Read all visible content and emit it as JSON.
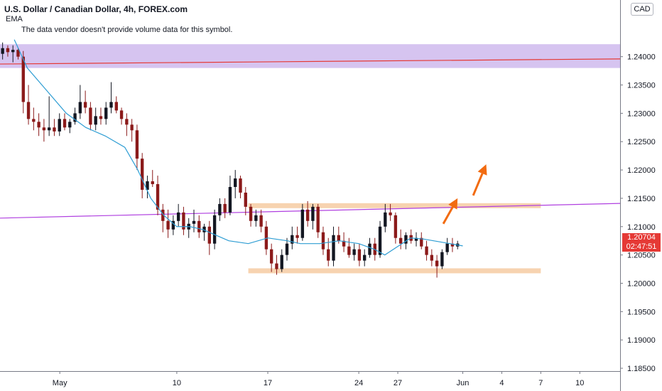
{
  "header": {
    "title": "U.S. Dollar / Canadian Dollar, 4h, FOREX.com",
    "indicator": "EMA",
    "warning": "The data vendor doesn't provide volume data for this symbol.",
    "currency": "CAD"
  },
  "price_tag": {
    "price": "1.20704",
    "countdown": "02:47:51"
  },
  "colors": {
    "up": "#131722",
    "down": "#8b1a1a",
    "ema": "#2e9dd3",
    "upper_zone": "#d6c4f0",
    "support": "#f7d3b0",
    "trendline": "#b040e0",
    "red_line": "#e53935",
    "arrow": "#f26b10",
    "price_tag": "#e53935"
  },
  "chart_data": {
    "type": "candlestick",
    "ylim": [
      1.1845,
      1.25
    ],
    "y_ticks": [
      "1.24000",
      "1.23500",
      "1.23000",
      "1.22500",
      "1.22000",
      "1.21500",
      "1.21000",
      "1.20500",
      "1.20000",
      "1.19500",
      "1.19000",
      "1.18500"
    ],
    "y_tick_values": [
      1.24,
      1.235,
      1.23,
      1.225,
      1.22,
      1.215,
      1.21,
      1.205,
      1.2,
      1.195,
      1.19,
      1.185
    ],
    "x_ticks": [
      "May",
      "10",
      "17",
      "24",
      "27",
      "Jun",
      "4",
      "7",
      "10"
    ],
    "x_tick_days": [
      1,
      10,
      17,
      24,
      27,
      32,
      35,
      38,
      41
    ],
    "x_start_day": -3.6,
    "x_end_day": 44.1,
    "candles": [
      [
        1.2405,
        1.2425,
        1.2395,
        1.2415
      ],
      [
        1.2415,
        1.242,
        1.24,
        1.2408
      ],
      [
        1.2408,
        1.242,
        1.239,
        1.2412
      ],
      [
        1.2412,
        1.2415,
        1.2395,
        1.24
      ],
      [
        1.24,
        1.241,
        1.23,
        1.232
      ],
      [
        1.232,
        1.235,
        1.228,
        1.229
      ],
      [
        1.229,
        1.231,
        1.227,
        1.2285
      ],
      [
        1.2285,
        1.23,
        1.226,
        1.2275
      ],
      [
        1.2275,
        1.229,
        1.225,
        1.227
      ],
      [
        1.227,
        1.233,
        1.226,
        1.2275
      ],
      [
        1.2275,
        1.229,
        1.226,
        1.2268
      ],
      [
        1.2268,
        1.23,
        1.226,
        1.229
      ],
      [
        1.229,
        1.23,
        1.227,
        1.2275
      ],
      [
        1.2275,
        1.229,
        1.2265,
        1.2285
      ],
      [
        1.2285,
        1.231,
        1.228,
        1.23
      ],
      [
        1.23,
        1.235,
        1.229,
        1.232
      ],
      [
        1.232,
        1.234,
        1.23,
        1.231
      ],
      [
        1.231,
        1.232,
        1.227,
        1.228
      ],
      [
        1.228,
        1.231,
        1.227,
        1.2295
      ],
      [
        1.2295,
        1.231,
        1.228,
        1.229
      ],
      [
        1.229,
        1.232,
        1.228,
        1.231
      ],
      [
        1.231,
        1.2355,
        1.23,
        1.232
      ],
      [
        1.232,
        1.233,
        1.23,
        1.2305
      ],
      [
        1.2305,
        1.231,
        1.228,
        1.229
      ],
      [
        1.229,
        1.23,
        1.226,
        1.228
      ],
      [
        1.228,
        1.229,
        1.225,
        1.227
      ],
      [
        1.227,
        1.228,
        1.22,
        1.222
      ],
      [
        1.222,
        1.223,
        1.215,
        1.2165
      ],
      [
        1.2165,
        1.219,
        1.215,
        1.218
      ],
      [
        1.218,
        1.22,
        1.217,
        1.2175
      ],
      [
        1.2175,
        1.219,
        1.212,
        1.213
      ],
      [
        1.213,
        1.214,
        1.209,
        1.211
      ],
      [
        1.211,
        1.213,
        1.208,
        1.2095
      ],
      [
        1.2095,
        1.212,
        1.2085,
        1.211
      ],
      [
        1.211,
        1.214,
        1.21,
        1.2125
      ],
      [
        1.2125,
        1.2135,
        1.2085,
        1.2095
      ],
      [
        1.2095,
        1.2115,
        1.208,
        1.2105
      ],
      [
        1.2105,
        1.213,
        1.209,
        1.211
      ],
      [
        1.211,
        1.212,
        1.208,
        1.209
      ],
      [
        1.209,
        1.2105,
        1.2075,
        1.21
      ],
      [
        1.21,
        1.211,
        1.205,
        1.207
      ],
      [
        1.207,
        1.213,
        1.206,
        1.212
      ],
      [
        1.212,
        1.215,
        1.211,
        1.214
      ],
      [
        1.214,
        1.215,
        1.2115,
        1.2125
      ],
      [
        1.2125,
        1.219,
        1.212,
        1.217
      ],
      [
        1.217,
        1.22,
        1.215,
        1.2185
      ],
      [
        1.2185,
        1.219,
        1.215,
        1.216
      ],
      [
        1.216,
        1.217,
        1.212,
        1.2135
      ],
      [
        1.2135,
        1.214,
        1.21,
        1.211
      ],
      [
        1.211,
        1.213,
        1.21,
        1.212
      ],
      [
        1.212,
        1.213,
        1.209,
        1.21
      ],
      [
        1.21,
        1.211,
        1.205,
        1.206
      ],
      [
        1.206,
        1.207,
        1.202,
        1.2035
      ],
      [
        1.2035,
        1.205,
        1.2015,
        1.2025
      ],
      [
        1.2025,
        1.206,
        1.202,
        1.205
      ],
      [
        1.205,
        1.208,
        1.204,
        1.207
      ],
      [
        1.207,
        1.21,
        1.206,
        1.2085
      ],
      [
        1.2085,
        1.21,
        1.207,
        1.208
      ],
      [
        1.208,
        1.214,
        1.2075,
        1.213
      ],
      [
        1.213,
        1.2145,
        1.21,
        1.211
      ],
      [
        1.211,
        1.214,
        1.2095,
        1.2135
      ],
      [
        1.2135,
        1.214,
        1.208,
        1.209
      ],
      [
        1.209,
        1.21,
        1.205,
        1.206
      ],
      [
        1.206,
        1.208,
        1.203,
        1.204
      ],
      [
        1.204,
        1.21,
        1.203,
        1.2085
      ],
      [
        1.2085,
        1.21,
        1.207,
        1.2075
      ],
      [
        1.2075,
        1.209,
        1.2055,
        1.2065
      ],
      [
        1.2065,
        1.208,
        1.2045,
        1.205
      ],
      [
        1.205,
        1.207,
        1.204,
        1.206
      ],
      [
        1.206,
        1.207,
        1.203,
        1.204
      ],
      [
        1.204,
        1.206,
        1.203,
        1.205
      ],
      [
        1.205,
        1.208,
        1.2045,
        1.207
      ],
      [
        1.207,
        1.208,
        1.204,
        1.205
      ],
      [
        1.205,
        1.211,
        1.2045,
        1.21
      ],
      [
        1.21,
        1.214,
        1.209,
        1.2125
      ],
      [
        1.2125,
        1.214,
        1.211,
        1.212
      ],
      [
        1.212,
        1.2125,
        1.207,
        1.208
      ],
      [
        1.208,
        1.2095,
        1.206,
        1.207
      ],
      [
        1.207,
        1.209,
        1.206,
        1.2085
      ],
      [
        1.2085,
        1.2095,
        1.207,
        1.2075
      ],
      [
        1.2075,
        1.209,
        1.2065,
        1.208
      ],
      [
        1.208,
        1.209,
        1.206,
        1.2065
      ],
      [
        1.2065,
        1.2075,
        1.204,
        1.205
      ],
      [
        1.205,
        1.206,
        1.203,
        1.204
      ],
      [
        1.204,
        1.205,
        1.201,
        1.203
      ],
      [
        1.203,
        1.206,
        1.2025,
        1.2055
      ],
      [
        1.2055,
        1.208,
        1.205,
        1.207
      ],
      [
        1.207,
        1.208,
        1.2055,
        1.2065
      ],
      [
        1.2065,
        1.2075,
        1.206,
        1.207
      ]
    ],
    "ema": [
      1.243,
      1.238,
      1.234,
      1.23,
      1.2275,
      1.226,
      1.224,
      1.22,
      1.215,
      1.212,
      1.21,
      1.21,
      1.2095,
      1.2075,
      1.207,
      1.208,
      1.2075,
      1.207,
      1.207,
      1.2075,
      1.207,
      1.206,
      1.205,
      1.2065,
      1.208,
      1.2078,
      1.2072,
      1.2066
    ],
    "ema_days": [
      -2.5,
      -1.5,
      0,
      1.5,
      3,
      4.5,
      6,
      7,
      8,
      9,
      10,
      11,
      12,
      14,
      15.5,
      17,
      18.5,
      19.5,
      21,
      22.5,
      24,
      25.2,
      26,
      27,
      28,
      29,
      30.5,
      32
    ],
    "upper_zone": [
      1.238,
      1.2422
    ],
    "red_line": {
      "start": [
        -3.6,
        1.2387
      ],
      "end": [
        44.1,
        1.2396
      ]
    },
    "trendline": {
      "start": [
        -3.6,
        1.2115
      ],
      "end": [
        44.1,
        1.2141
      ]
    },
    "resistance_zone": {
      "x": [
        15.5,
        38
      ],
      "y": 1.2137
    },
    "support_zone": {
      "x": [
        15.5,
        38
      ],
      "y": 1.2022
    },
    "arrows": [
      {
        "from": [
          30.5,
          1.2105
        ],
        "to": [
          31.6,
          1.215
        ]
      },
      {
        "from": [
          32.8,
          1.2155
        ],
        "to": [
          33.8,
          1.221
        ]
      }
    ]
  }
}
